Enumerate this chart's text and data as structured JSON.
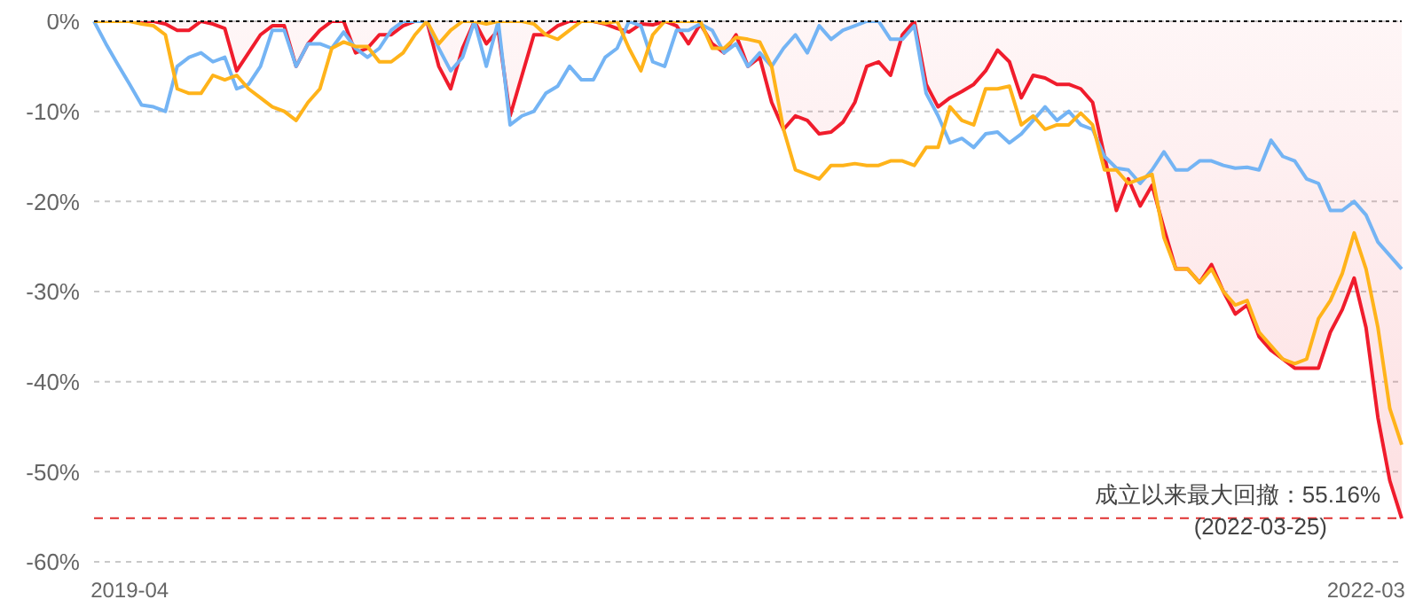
{
  "chart_data": {
    "type": "line",
    "categories": [
      null,
      null,
      null,
      "2019-04",
      null,
      null,
      null,
      null,
      null,
      null,
      null,
      null,
      null,
      null,
      null,
      null,
      null,
      null,
      null,
      null,
      null,
      null,
      null,
      null,
      null,
      null,
      null,
      null,
      null,
      null,
      null,
      null,
      null,
      null,
      null,
      null,
      null,
      null,
      null,
      null,
      null,
      null,
      null,
      null,
      null,
      null,
      null,
      null,
      null,
      null,
      null,
      null,
      null,
      null,
      null,
      null,
      null,
      null,
      null,
      null,
      null,
      null,
      null,
      null,
      null,
      null,
      null,
      null,
      null,
      null,
      null,
      null,
      null,
      null,
      null,
      null,
      null,
      null,
      null,
      null,
      null,
      null,
      null,
      null,
      null,
      null,
      null,
      null,
      null,
      null,
      null,
      null,
      null,
      null,
      null,
      null,
      null,
      null,
      null,
      null,
      null,
      null,
      null,
      null,
      null,
      null,
      null,
      "2022-03",
      null,
      null,
      null
    ],
    "series": [
      {
        "type": "line",
        "color": "#74b4f4",
        "values": [
          0,
          -2.5,
          -4.8,
          -7,
          -9.3,
          -9.5,
          -10,
          -5,
          -4,
          -3.5,
          -4.5,
          -4,
          -7.5,
          -7,
          -5,
          -1,
          -1,
          -5,
          -2.5,
          -2.5,
          -3,
          -1.2,
          -3,
          -4,
          -3,
          -1,
          0,
          0,
          0,
          -3,
          -5.5,
          -4,
          0,
          -5,
          0,
          -11.5,
          -10.5,
          -10,
          -8,
          -7.2,
          -5,
          -6.5,
          -6.5,
          -4,
          -3,
          0,
          -0.5,
          -4.5,
          -5,
          -1,
          -1,
          -0.3,
          -1,
          -3.5,
          -2.5,
          -5,
          -3.5,
          -5,
          -3,
          -1.5,
          -3.5,
          -0.5,
          -2,
          -1,
          -0.5,
          0,
          0,
          -2,
          -2,
          -0.5,
          -8,
          -10.5,
          -13.5,
          -13,
          -14,
          -12.5,
          -12.3,
          -13.5,
          -12.5,
          -11,
          -9.5,
          -11,
          -10,
          -11.5,
          -12,
          -15,
          -16.3,
          -16.5,
          -18,
          -16.5,
          -14.5,
          -16.5,
          -16.5,
          -15.5,
          -15.5,
          -16,
          -16.3,
          -16.2,
          -16.5,
          -13.2,
          -15,
          -15.5,
          -17.5,
          -18,
          -21,
          -21,
          -20,
          -21.5,
          -24.5,
          -26,
          -27.5
        ]
      },
      {
        "type": "line",
        "color": "#ffb31a",
        "values": [
          0,
          0,
          0,
          0,
          -0.3,
          -0.5,
          -1.5,
          -7.5,
          -8,
          -8,
          -6,
          -6.5,
          -6,
          -7.5,
          -8.5,
          -9.5,
          -10,
          -11,
          -9,
          -7.5,
          -3,
          -2.3,
          -2.8,
          -2.8,
          -4.5,
          -4.5,
          -3.5,
          -1.5,
          0,
          -2.5,
          -1,
          0,
          0,
          -0.3,
          0,
          0,
          0,
          -0.3,
          -1.5,
          -2,
          -1,
          0,
          0,
          -0.2,
          0,
          -3,
          -5.5,
          -1.5,
          0,
          0,
          0,
          0,
          -3,
          -3,
          -1.8,
          -2,
          -2.3,
          -5,
          -12,
          -16.5,
          -17,
          -17.5,
          -16,
          -16,
          -15.8,
          -16,
          -16,
          -15.5,
          -15.5,
          -16,
          -14,
          -14,
          -9.5,
          -11,
          -11.5,
          -7.5,
          -7.5,
          -7.2,
          -11.5,
          -10.5,
          -12,
          -11.5,
          -11.5,
          -10.2,
          -11.5,
          -16.5,
          -16.5,
          -18,
          -17.5,
          -17,
          -24,
          -27.5,
          -27.5,
          -29,
          -27.5,
          -30,
          -31.5,
          -31,
          -34.5,
          -36,
          -37.5,
          -38,
          -37.5,
          -33,
          -31,
          -28,
          -23.5,
          -27.5,
          -34,
          -43,
          -47
        ]
      },
      {
        "type": "area",
        "color": "#f01c2c",
        "values": [
          0,
          0,
          0,
          0,
          0,
          0,
          -0.3,
          -1,
          -1,
          0,
          -0.3,
          -0.8,
          -5.5,
          -3.5,
          -1.5,
          -0.5,
          -0.5,
          -5,
          -2.5,
          -1,
          0,
          0,
          -3.5,
          -3,
          -1.5,
          -1.5,
          -0.5,
          0,
          0,
          -5,
          -7.5,
          -3,
          0,
          -2.5,
          -1,
          -10.5,
          -6,
          -1.5,
          -1.5,
          -0.5,
          0,
          0,
          0,
          -0.3,
          -0.8,
          -1.2,
          -0.3,
          -0.4,
          0,
          -0.5,
          -2.5,
          -0.3,
          -2.5,
          -3.5,
          -1.5,
          -5,
          -4,
          -9,
          -12,
          -10.5,
          -11,
          -12.5,
          -12.3,
          -11.2,
          -9,
          -5,
          -4.5,
          -6,
          -1.5,
          0,
          -7,
          -9.5,
          -8.5,
          -7.8,
          -7,
          -5.5,
          -3.2,
          -4.5,
          -8.5,
          -6,
          -6.3,
          -7,
          -7,
          -7.5,
          -9,
          -15,
          -21,
          -17.5,
          -20.5,
          -18.2,
          -23,
          -27.5,
          -27.5,
          -29,
          -27,
          -30,
          -32.5,
          -31.5,
          -35,
          -36.5,
          -37.5,
          -38.5,
          -38.5,
          -38.5,
          -34.5,
          -32,
          -28.5,
          -34,
          -44,
          -51,
          -55.2
        ]
      }
    ],
    "ylim": [
      -60,
      0
    ],
    "yticks": [
      {
        "value": -60,
        "label": "-60%"
      },
      {
        "value": -50,
        "label": "-50%"
      },
      {
        "value": -40,
        "label": "-40%"
      },
      {
        "value": -30,
        "label": "-30%"
      },
      {
        "value": -20,
        "label": "-20%"
      },
      {
        "value": -10,
        "label": "-10%"
      },
      {
        "value": 0,
        "label": "0%"
      }
    ],
    "grid": "y",
    "legend": false,
    "marker": "none",
    "line_style": "solid",
    "ref_lines": [
      {
        "axis": "y",
        "value": 0,
        "color": "#000000",
        "line_style": "dotted"
      },
      {
        "axis": "y",
        "value": -55.16,
        "color": "#e03030",
        "line_style": "dashed",
        "label": "成立以来最大回撤：55.16%\n(2022-03-25)"
      }
    ]
  }
}
